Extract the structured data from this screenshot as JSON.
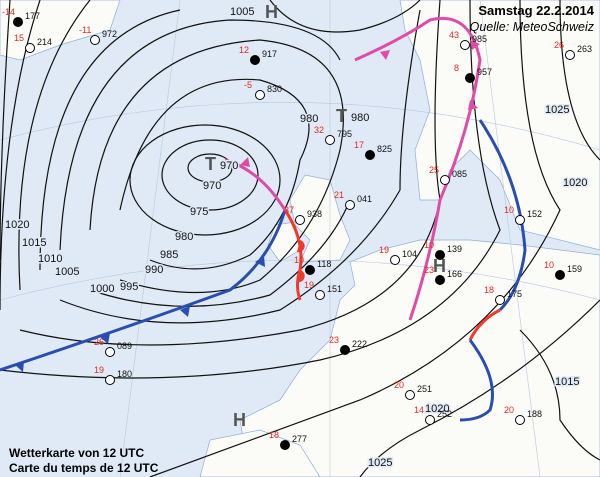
{
  "header": {
    "title": "Samstag 22.2.2014",
    "source": "Quelle: MeteoSchweiz"
  },
  "caption": {
    "line1": "Wetterkarte von 12 UTC",
    "line2": "Carte du temps de 12 UTC"
  },
  "pressure_centers": [
    {
      "type": "low",
      "symbol": "T",
      "value": "970"
    },
    {
      "type": "low",
      "symbol": "T",
      "value": "980"
    },
    {
      "type": "high",
      "symbol": "H",
      "value": ""
    },
    {
      "type": "high",
      "symbol": "H",
      "value": ""
    },
    {
      "type": "high",
      "symbol": "H",
      "value": ""
    }
  ],
  "isobar_labels": [
    "970",
    "975",
    "980",
    "985",
    "990",
    "995",
    "1000",
    "1005",
    "1010",
    "1015",
    "1020",
    "1005",
    "980",
    "1020",
    "1025",
    "1020",
    "1015",
    "1025"
  ],
  "stations": [
    {
      "p": "177",
      "t": "-14"
    },
    {
      "p": "214",
      "t": "15"
    },
    {
      "p": "972",
      "t": "-11"
    },
    {
      "p": "917",
      "t": "12"
    },
    {
      "p": "830",
      "t": "-5"
    },
    {
      "p": "795",
      "t": "32"
    },
    {
      "p": "825",
      "t": "17"
    },
    {
      "p": "938",
      "t": "37"
    },
    {
      "p": "041",
      "t": "21"
    },
    {
      "p": "118",
      "t": "10"
    },
    {
      "p": "151",
      "t": "19"
    },
    {
      "p": "104",
      "t": "19"
    },
    {
      "p": "139",
      "t": "10"
    },
    {
      "p": "175",
      "t": "18"
    },
    {
      "p": "985",
      "t": "43"
    },
    {
      "p": "957",
      "t": "8"
    },
    {
      "p": "085",
      "t": "25"
    },
    {
      "p": "152",
      "t": "10"
    },
    {
      "p": "166",
      "t": "23"
    },
    {
      "p": "089",
      "t": "26"
    },
    {
      "p": "180",
      "t": "19"
    },
    {
      "p": "222",
      "t": "23"
    },
    {
      "p": "251",
      "t": "20"
    },
    {
      "p": "252",
      "t": "14"
    },
    {
      "p": "277",
      "t": "18"
    },
    {
      "p": "188",
      "t": "20"
    },
    {
      "p": "263",
      "t": "26"
    },
    {
      "p": "159",
      "t": "10"
    }
  ],
  "colors": {
    "sea": "#dfeaf6",
    "land": "#fbfbf8",
    "cold_front": "#2a4db0",
    "warm_front": "#f03a2e",
    "occlusion": "#e04aa8",
    "isobar": "#111111",
    "temp": "#e8281e"
  }
}
